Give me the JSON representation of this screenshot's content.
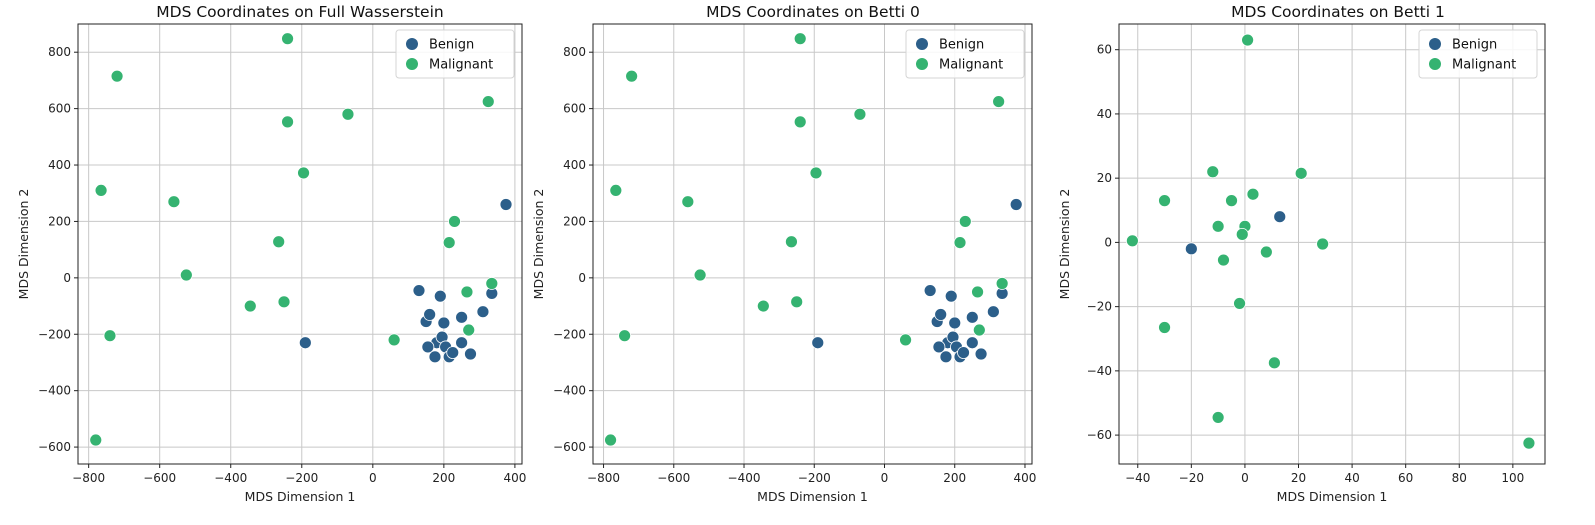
{
  "colors": {
    "benign": "#2c5f8a",
    "malignant": "#35b371"
  },
  "chart_data": [
    {
      "type": "scatter",
      "title": "MDS Coordinates on Full Wasserstein",
      "xlabel": "MDS Dimension 1",
      "ylabel": "MDS Dimension 2",
      "xlim": [
        -830,
        420
      ],
      "ylim": [
        -660,
        900
      ],
      "xticks": [
        -800,
        -600,
        -400,
        -200,
        0,
        200,
        400
      ],
      "yticks": [
        -600,
        -400,
        -200,
        0,
        200,
        400,
        600,
        800
      ],
      "xtick_labels": [
        "−800",
        "−600",
        "−400",
        "−200",
        "0",
        "200",
        "400"
      ],
      "ytick_labels": [
        "−600",
        "−400",
        "−200",
        "0",
        "200",
        "400",
        "600",
        "800"
      ],
      "grid": true,
      "legend": {
        "position": "top-right",
        "entries": [
          "Benign",
          "Malignant"
        ]
      },
      "series": [
        {
          "name": "Benign",
          "points": [
            [
              130,
              -45
            ],
            [
              150,
              -155
            ],
            [
              160,
              -130
            ],
            [
              180,
              -230
            ],
            [
              190,
              -65
            ],
            [
              200,
              -160
            ],
            [
              175,
              -280
            ],
            [
              155,
              -245
            ],
            [
              195,
              -210
            ],
            [
              205,
              -245
            ],
            [
              215,
              -280
            ],
            [
              225,
              -265
            ],
            [
              250,
              -140
            ],
            [
              250,
              -230
            ],
            [
              275,
              -270
            ],
            [
              310,
              -120
            ],
            [
              335,
              -55
            ],
            [
              375,
              260
            ],
            [
              -190,
              -230
            ]
          ]
        },
        {
          "name": "Malignant",
          "points": [
            [
              -720,
              715
            ],
            [
              -765,
              310
            ],
            [
              -560,
              270
            ],
            [
              -525,
              10
            ],
            [
              -740,
              -205
            ],
            [
              -780,
              -575
            ],
            [
              -240,
              848
            ],
            [
              -240,
              553
            ],
            [
              -70,
              580
            ],
            [
              -195,
              372
            ],
            [
              -265,
              128
            ],
            [
              -345,
              -100
            ],
            [
              -250,
              -85
            ],
            [
              325,
              625
            ],
            [
              230,
              200
            ],
            [
              215,
              125
            ],
            [
              335,
              -20
            ],
            [
              265,
              -50
            ],
            [
              270,
              -185
            ],
            [
              60,
              -220
            ]
          ]
        }
      ]
    },
    {
      "type": "scatter",
      "title": "MDS Coordinates on Betti 0",
      "xlabel": "MDS Dimension 1",
      "ylabel": "MDS Dimension 2",
      "xlim": [
        -830,
        420
      ],
      "ylim": [
        -660,
        900
      ],
      "xticks": [
        -800,
        -600,
        -400,
        -200,
        0,
        200,
        400
      ],
      "yticks": [
        -600,
        -400,
        -200,
        0,
        200,
        400,
        600,
        800
      ],
      "xtick_labels": [
        "−800",
        "−600",
        "−400",
        "−200",
        "0",
        "200",
        "400"
      ],
      "ytick_labels": [
        "−600",
        "−400",
        "−200",
        "0",
        "200",
        "400",
        "600",
        "800"
      ],
      "grid": true,
      "legend": {
        "position": "top-right",
        "entries": [
          "Benign",
          "Malignant"
        ]
      },
      "series": [
        {
          "name": "Benign",
          "points": [
            [
              130,
              -45
            ],
            [
              150,
              -155
            ],
            [
              160,
              -130
            ],
            [
              180,
              -230
            ],
            [
              190,
              -65
            ],
            [
              200,
              -160
            ],
            [
              175,
              -280
            ],
            [
              155,
              -245
            ],
            [
              195,
              -210
            ],
            [
              205,
              -245
            ],
            [
              215,
              -280
            ],
            [
              225,
              -265
            ],
            [
              250,
              -140
            ],
            [
              250,
              -230
            ],
            [
              275,
              -270
            ],
            [
              310,
              -120
            ],
            [
              335,
              -55
            ],
            [
              375,
              260
            ],
            [
              -190,
              -230
            ]
          ]
        },
        {
          "name": "Malignant",
          "points": [
            [
              -720,
              715
            ],
            [
              -765,
              310
            ],
            [
              -560,
              270
            ],
            [
              -525,
              10
            ],
            [
              -740,
              -205
            ],
            [
              -780,
              -575
            ],
            [
              -240,
              848
            ],
            [
              -240,
              553
            ],
            [
              -70,
              580
            ],
            [
              -195,
              372
            ],
            [
              -265,
              128
            ],
            [
              -345,
              -100
            ],
            [
              -250,
              -85
            ],
            [
              325,
              625
            ],
            [
              230,
              200
            ],
            [
              215,
              125
            ],
            [
              335,
              -20
            ],
            [
              265,
              -50
            ],
            [
              270,
              -185
            ],
            [
              60,
              -220
            ]
          ]
        }
      ]
    },
    {
      "type": "scatter",
      "title": "MDS Coordinates on Betti 1",
      "xlabel": "MDS Dimension 1",
      "ylabel": "MDS Dimension 2",
      "xlim": [
        -47,
        112
      ],
      "ylim": [
        -69,
        68
      ],
      "xticks": [
        -40,
        -20,
        0,
        20,
        40,
        60,
        80,
        100
      ],
      "yticks": [
        -60,
        -40,
        -20,
        0,
        20,
        40,
        60
      ],
      "xtick_labels": [
        "−40",
        "−20",
        "0",
        "20",
        "40",
        "60",
        "80",
        "100"
      ],
      "ytick_labels": [
        "−60",
        "−40",
        "−20",
        "0",
        "20",
        "40",
        "60"
      ],
      "grid": true,
      "legend": {
        "position": "top-right",
        "entries": [
          "Benign",
          "Malignant"
        ]
      },
      "series": [
        {
          "name": "Benign",
          "points": [
            [
              -20,
              -2
            ],
            [
              13,
              8
            ]
          ]
        },
        {
          "name": "Malignant",
          "points": [
            [
              1,
              63
            ],
            [
              -30,
              13
            ],
            [
              -12,
              22
            ],
            [
              -5,
              13
            ],
            [
              3,
              15
            ],
            [
              21,
              21.5
            ],
            [
              -42,
              0.5
            ],
            [
              -10,
              5
            ],
            [
              0,
              5
            ],
            [
              -1,
              2.5
            ],
            [
              -8,
              -5.5
            ],
            [
              8,
              -3
            ],
            [
              29,
              -0.5
            ],
            [
              -30,
              -26.5
            ],
            [
              -2,
              -19
            ],
            [
              11,
              -37.5
            ],
            [
              -10,
              -54.5
            ],
            [
              106,
              -62.5
            ]
          ]
        }
      ]
    }
  ]
}
